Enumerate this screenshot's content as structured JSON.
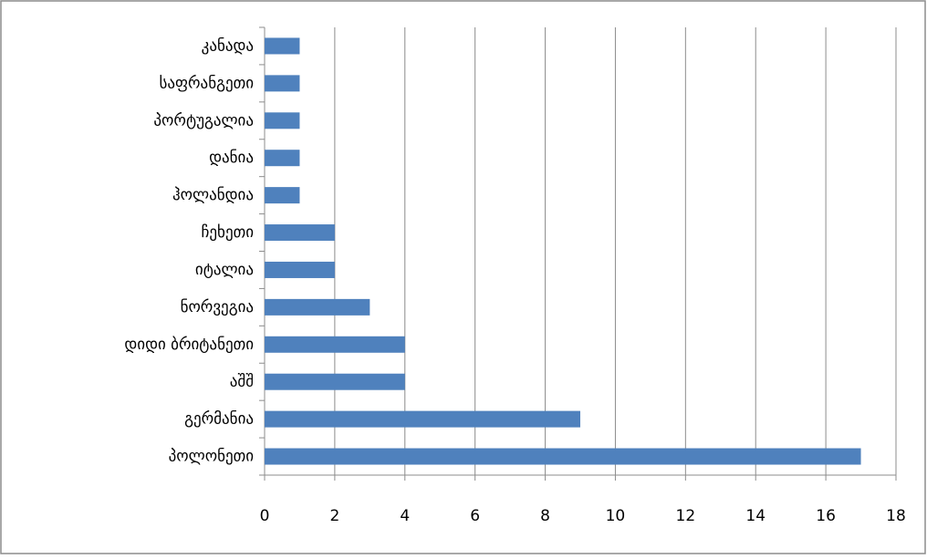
{
  "chart_data": {
    "type": "barh",
    "categories": [
      "კანადა",
      "საფრანგეთი",
      "პორტუგალია",
      "დანია",
      "ჰოლანდია",
      "ჩეხეთი",
      "იტალია",
      "ნორვეგია",
      "დიდი ბრიტანეთი",
      "აშშ",
      "გერმანია",
      "პოლონეთი"
    ],
    "values": [
      1,
      1,
      1,
      1,
      1,
      2,
      2,
      3,
      4,
      4,
      9,
      17
    ],
    "color": "#4f81bd",
    "xlim": [
      0,
      18
    ],
    "xticks": [
      0,
      2,
      4,
      6,
      8,
      10,
      12,
      14,
      16,
      18
    ],
    "grid": true
  }
}
